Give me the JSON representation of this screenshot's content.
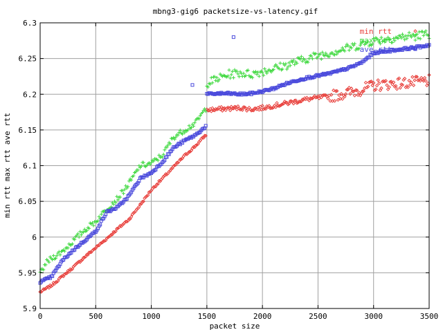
{
  "chart_data": {
    "type": "scatter",
    "title": "mbng3-gig6 packetsize-vs-latency.gif",
    "xlabel": "packet size",
    "ylabel": "min rtt max rtt ave rtt",
    "xlim": [
      0,
      3500
    ],
    "ylim": [
      5.9,
      6.3
    ],
    "xticks": [
      "0",
      "500",
      "1000",
      "1500",
      "2000",
      "2500",
      "3000",
      "3500"
    ],
    "yticks": [
      "5.9",
      "5.95",
      "6",
      "6.05",
      "6.1",
      "6.15",
      "6.2",
      "6.25",
      "6.3"
    ],
    "grid": true,
    "legend_position": "top-right",
    "series": [
      {
        "name": "min rtt",
        "marker": "diamond",
        "color": "#e8403c",
        "points": [
          [
            0,
            5.923
          ],
          [
            100,
            5.932
          ],
          [
            200,
            5.945
          ],
          [
            300,
            5.958
          ],
          [
            400,
            5.972
          ],
          [
            500,
            5.985
          ],
          [
            600,
            5.998
          ],
          [
            700,
            6.012
          ],
          [
            800,
            6.025
          ],
          [
            900,
            6.045
          ],
          [
            1000,
            6.066
          ],
          [
            1100,
            6.082
          ],
          [
            1200,
            6.098
          ],
          [
            1300,
            6.114
          ],
          [
            1400,
            6.128
          ],
          [
            1490,
            6.143
          ],
          [
            1500,
            6.178
          ],
          [
            1600,
            6.179
          ],
          [
            1700,
            6.18
          ],
          [
            1800,
            6.181
          ],
          [
            1900,
            6.179
          ],
          [
            2000,
            6.181
          ],
          [
            2100,
            6.184
          ],
          [
            2200,
            6.187
          ],
          [
            2300,
            6.19
          ],
          [
            2400,
            6.193
          ],
          [
            2500,
            6.195
          ],
          [
            2600,
            6.197
          ],
          [
            2700,
            6.2
          ],
          [
            2800,
            6.203
          ],
          [
            2900,
            6.207
          ],
          [
            3000,
            6.212
          ],
          [
            3100,
            6.214
          ],
          [
            3200,
            6.215
          ],
          [
            3300,
            6.216
          ],
          [
            3400,
            6.217
          ],
          [
            3500,
            6.219
          ]
        ]
      },
      {
        "name": "max rtt",
        "marker": "plus",
        "color": "#3cd83c",
        "points": [
          [
            0,
            5.948
          ],
          [
            50,
            5.963
          ],
          [
            100,
            5.97
          ],
          [
            200,
            5.98
          ],
          [
            300,
            5.995
          ],
          [
            400,
            6.01
          ],
          [
            500,
            6.022
          ],
          [
            600,
            6.04
          ],
          [
            700,
            6.055
          ],
          [
            800,
            6.075
          ],
          [
            900,
            6.1
          ],
          [
            1000,
            6.103
          ],
          [
            1100,
            6.115
          ],
          [
            1200,
            6.14
          ],
          [
            1300,
            6.15
          ],
          [
            1400,
            6.16
          ],
          [
            1490,
            6.18
          ],
          [
            1500,
            6.215
          ],
          [
            1600,
            6.222
          ],
          [
            1700,
            6.228
          ],
          [
            1800,
            6.23
          ],
          [
            1900,
            6.228
          ],
          [
            2000,
            6.232
          ],
          [
            2100,
            6.236
          ],
          [
            2200,
            6.24
          ],
          [
            2300,
            6.245
          ],
          [
            2400,
            6.25
          ],
          [
            2500,
            6.254
          ],
          [
            2600,
            6.258
          ],
          [
            2700,
            6.262
          ],
          [
            2800,
            6.266
          ],
          [
            2900,
            6.27
          ],
          [
            3000,
            6.275
          ],
          [
            3100,
            6.277
          ],
          [
            3200,
            6.279
          ],
          [
            3300,
            6.281
          ],
          [
            3400,
            6.283
          ],
          [
            3500,
            6.284
          ]
        ]
      },
      {
        "name": "ave rtt",
        "marker": "square",
        "color": "#4a4adc",
        "points": [
          [
            0,
            5.937
          ],
          [
            100,
            5.944
          ],
          [
            200,
            5.967
          ],
          [
            300,
            5.982
          ],
          [
            400,
            5.995
          ],
          [
            500,
            6.008
          ],
          [
            600,
            6.035
          ],
          [
            700,
            6.042
          ],
          [
            800,
            6.058
          ],
          [
            900,
            6.082
          ],
          [
            1000,
            6.09
          ],
          [
            1100,
            6.105
          ],
          [
            1200,
            6.125
          ],
          [
            1300,
            6.135
          ],
          [
            1400,
            6.143
          ],
          [
            1490,
            6.155
          ],
          [
            1500,
            6.2
          ],
          [
            1600,
            6.201
          ],
          [
            1700,
            6.201
          ],
          [
            1800,
            6.2
          ],
          [
            1900,
            6.201
          ],
          [
            2000,
            6.204
          ],
          [
            2100,
            6.208
          ],
          [
            2200,
            6.214
          ],
          [
            2300,
            6.219
          ],
          [
            2400,
            6.223
          ],
          [
            2500,
            6.226
          ],
          [
            2600,
            6.229
          ],
          [
            2700,
            6.233
          ],
          [
            2800,
            6.238
          ],
          [
            2900,
            6.245
          ],
          [
            3000,
            6.258
          ],
          [
            3100,
            6.26
          ],
          [
            3200,
            6.262
          ],
          [
            3300,
            6.264
          ],
          [
            3400,
            6.266
          ],
          [
            3500,
            6.269
          ]
        ],
        "outliers": [
          [
            1740,
            6.28
          ],
          [
            1370,
            6.213
          ]
        ]
      }
    ]
  }
}
